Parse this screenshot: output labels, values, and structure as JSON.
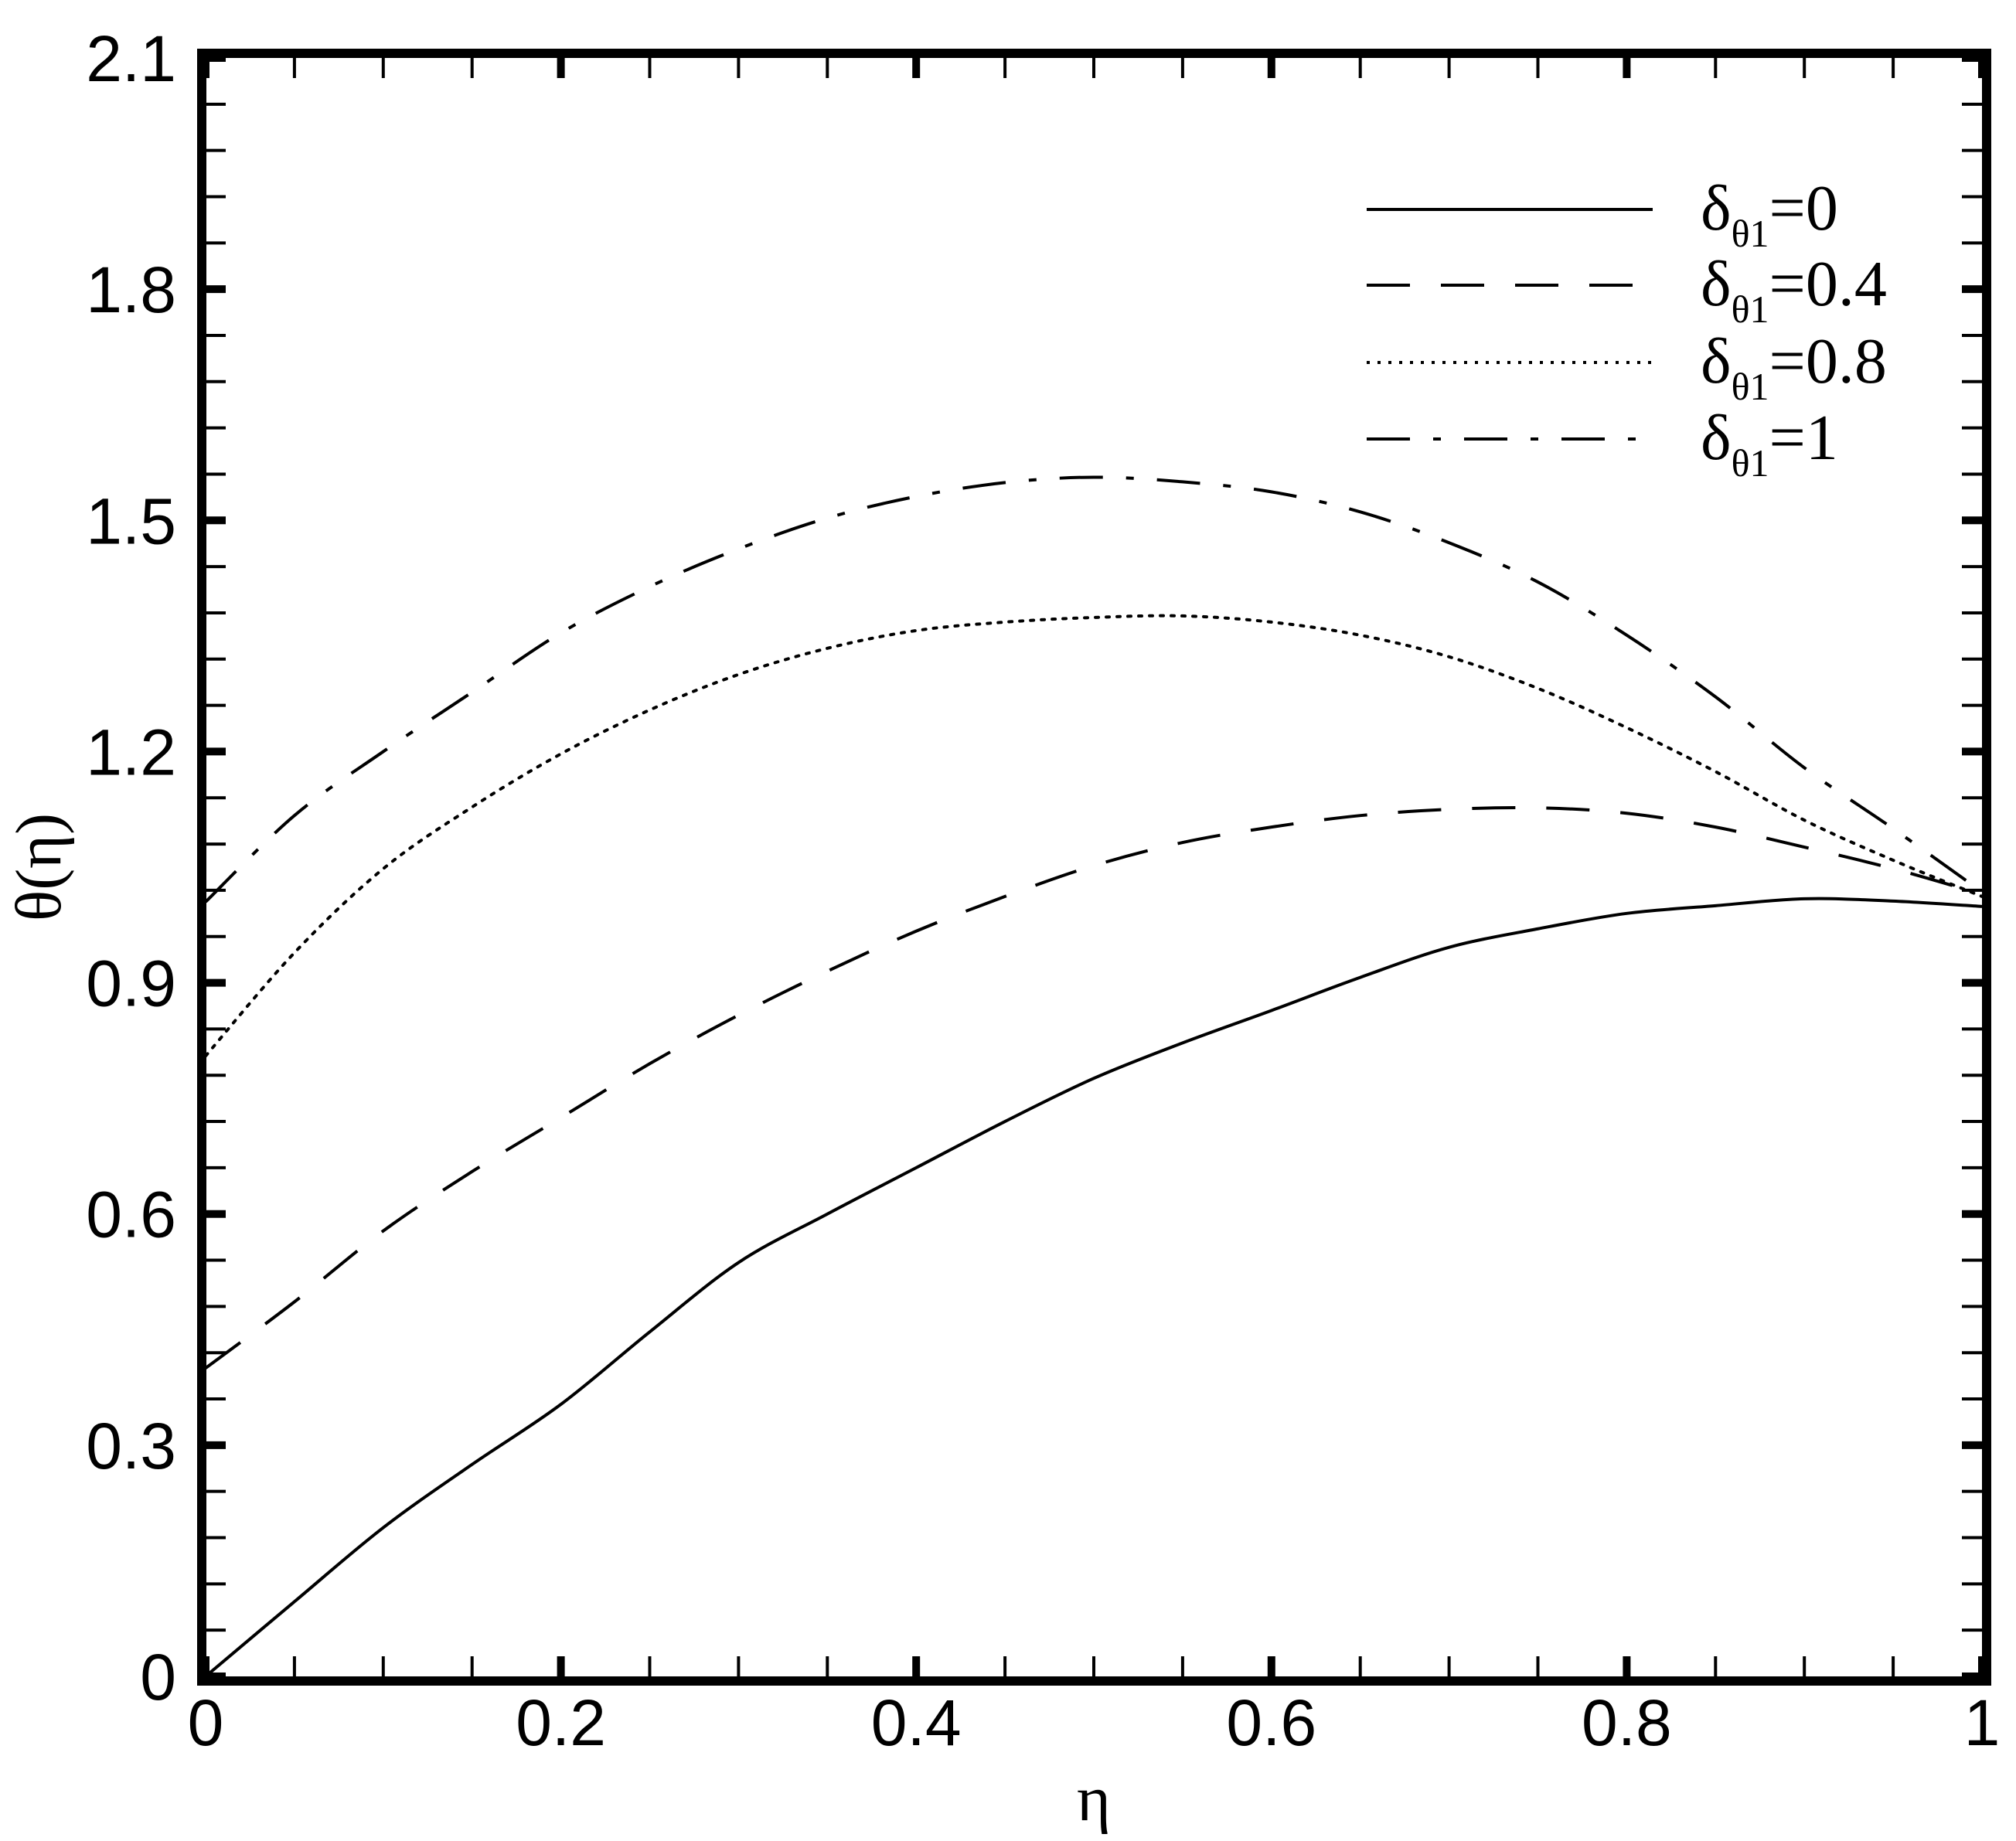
{
  "chart_data": {
    "type": "line",
    "title": "",
    "xlabel": "η",
    "ylabel": "θ(η)",
    "xlim": [
      0,
      1
    ],
    "ylim": [
      0,
      2.1
    ],
    "x_ticks": [
      "0",
      "0.2",
      "0.4",
      "0.6",
      "0.8",
      "1"
    ],
    "y_ticks": [
      "0",
      "0.3",
      "0.6",
      "0.9",
      "1.2",
      "1.5",
      "1.8",
      "2.1"
    ],
    "grid": false,
    "legend_position": "upper right",
    "x": [
      0,
      0.05,
      0.1,
      0.15,
      0.2,
      0.25,
      0.3,
      0.35,
      0.4,
      0.45,
      0.5,
      0.55,
      0.6,
      0.65,
      0.7,
      0.75,
      0.8,
      0.85,
      0.9,
      0.95,
      1.0
    ],
    "series": [
      {
        "name": "δθ1=0",
        "label_main": "δ",
        "label_sub": "θ1",
        "label_value": "=0",
        "style": "solid",
        "values": [
          0,
          0.097,
          0.193,
          0.275,
          0.353,
          0.447,
          0.537,
          0.6,
          0.66,
          0.72,
          0.776,
          0.822,
          0.864,
          0.907,
          0.946,
          0.97,
          0.99,
          1.0,
          1.009,
          1.006,
          0.999
        ]
      },
      {
        "name": "δθ1=0.4",
        "label_main": "δ",
        "label_sub": "θ1",
        "label_value": "=0.4",
        "style": "dashed",
        "values": [
          0.4,
          0.486,
          0.578,
          0.655,
          0.725,
          0.795,
          0.858,
          0.915,
          0.967,
          1.012,
          1.052,
          1.082,
          1.102,
          1.117,
          1.125,
          1.127,
          1.12,
          1.102,
          1.076,
          1.048,
          1.015
        ]
      },
      {
        "name": "δθ1=0.8",
        "label_main": "δ",
        "label_sub": "θ1",
        "label_value": "=0.8",
        "style": "dotted",
        "values": [
          0.805,
          0.939,
          1.048,
          1.128,
          1.197,
          1.254,
          1.3,
          1.334,
          1.357,
          1.368,
          1.374,
          1.376,
          1.368,
          1.351,
          1.323,
          1.282,
          1.231,
          1.174,
          1.111,
          1.059,
          1.012
        ]
      },
      {
        "name": "δθ1=1",
        "label_main": "δ",
        "label_sub": "θ1",
        "label_value": "=1",
        "style": "dashdot",
        "values": [
          1.005,
          1.117,
          1.2,
          1.277,
          1.354,
          1.414,
          1.463,
          1.503,
          1.531,
          1.549,
          1.556,
          1.55,
          1.537,
          1.511,
          1.471,
          1.42,
          1.351,
          1.271,
          1.179,
          1.1,
          1.018
        ]
      }
    ]
  }
}
